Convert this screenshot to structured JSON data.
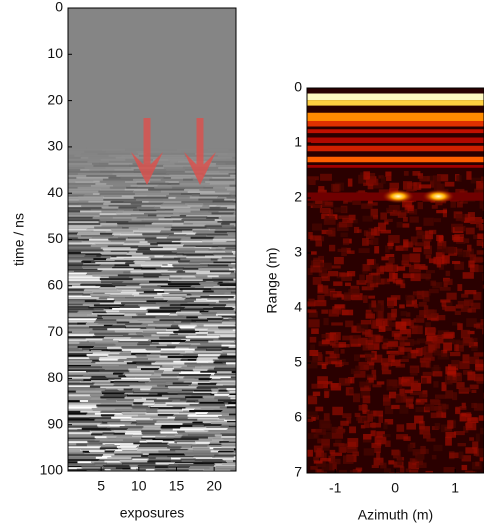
{
  "chart_data": [
    {
      "type": "image",
      "colormap": "gray",
      "xlabel": "exposures",
      "ylabel": "time / ns",
      "xlim": [
        0.6,
        22.9
      ],
      "xticks": [
        5,
        10,
        15,
        20
      ],
      "ylim": [
        0,
        100
      ],
      "y_inverted": true,
      "yticks": [
        0,
        10,
        20,
        30,
        40,
        50,
        60,
        70,
        80,
        90,
        100
      ]
    },
    {
      "type": "heatmap",
      "colormap": "hot",
      "xlabel": "Azimuth (m)",
      "ylabel": "Range (m)",
      "xlim": [
        -1.47,
        1.48
      ],
      "xticks": [
        -1,
        0,
        1
      ],
      "ylim": [
        0,
        7
      ],
      "y_inverted": true,
      "yticks": [
        0,
        1,
        2,
        3,
        4,
        5,
        6,
        7
      ]
    }
  ]
}
